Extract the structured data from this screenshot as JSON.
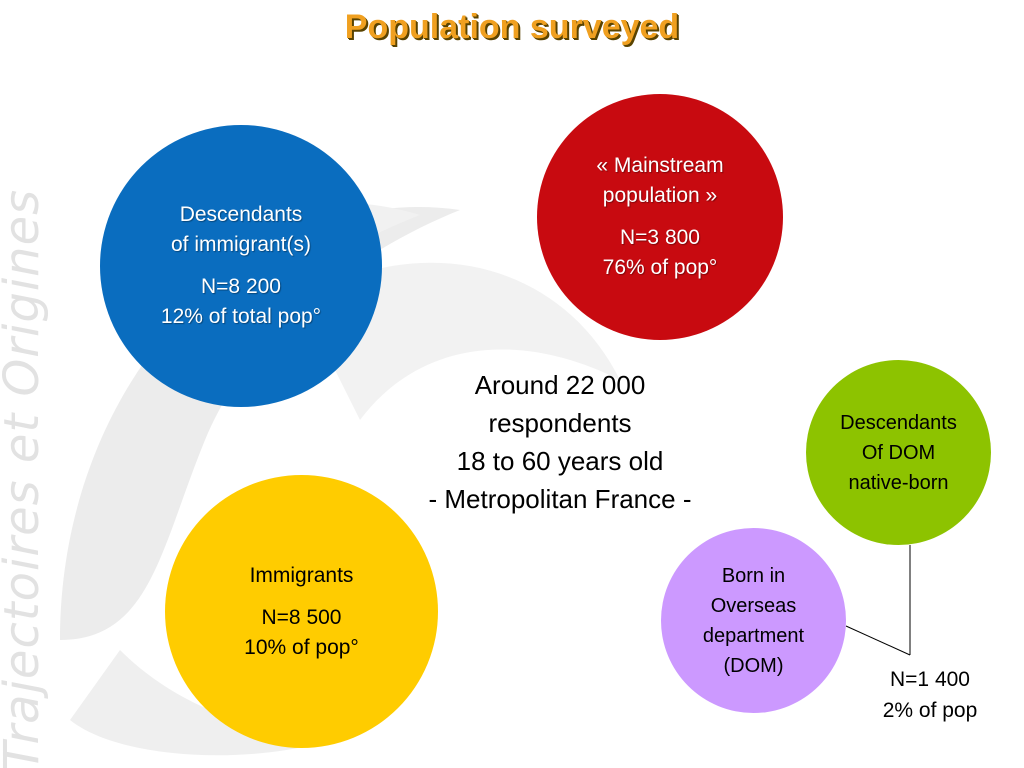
{
  "title": "Population surveyed",
  "watermark": {
    "text": "Trajectoires et Origines",
    "logo_icon": "tro-swirl-logo-icon",
    "color": "#e2e2e2"
  },
  "groups": {
    "descendants_immigrants": {
      "label_lines": [
        "Descendants",
        "of immigrant(s)"
      ],
      "count": "N=8 200",
      "share": "12% of total pop°",
      "color": "#0a6dbf"
    },
    "mainstream": {
      "label_lines": [
        "« Mainstream",
        "population  »"
      ],
      "count": "N=3 800",
      "share": "76% of  pop°",
      "color": "#c80a10"
    },
    "immigrants": {
      "label_lines": [
        "Immigrants"
      ],
      "count": "N=8 500",
      "share": "10% of pop°",
      "color": "#ffcc00"
    },
    "descendants_dom": {
      "label_lines": [
        "Descendants",
        "Of DOM",
        "native-born"
      ],
      "color": "#8dc300"
    },
    "born_dom": {
      "label_lines": [
        "Born in",
        "Overseas",
        "department",
        "(DOM)"
      ],
      "color": "#cc99ff"
    },
    "dom_stats": {
      "count": "N=1 400",
      "share": "2% of pop"
    }
  },
  "center": {
    "lines": [
      "Around 22 000",
      "respondents",
      "18 to 60 years old",
      "- Metropolitan France -"
    ]
  }
}
